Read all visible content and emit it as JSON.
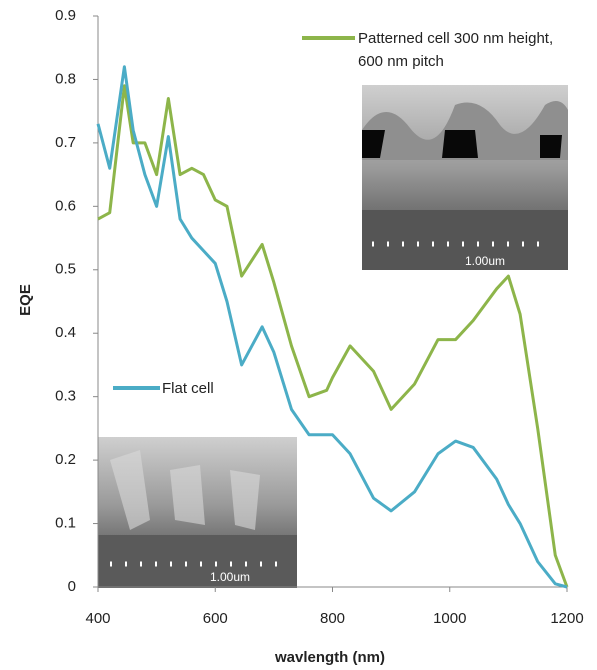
{
  "chart_data": {
    "type": "line",
    "xlabel": "wavlength (nm)",
    "ylabel": "EQE",
    "x": [
      400,
      420,
      445,
      460,
      480,
      500,
      520,
      540,
      560,
      580,
      600,
      620,
      645,
      680,
      700,
      730,
      760,
      790,
      800,
      830,
      870,
      900,
      940,
      980,
      1010,
      1040,
      1080,
      1100,
      1120,
      1150,
      1180,
      1200
    ],
    "series": [
      {
        "name": "Patterned cell 300 nm height, 600 nm pitch",
        "color": "#8db54a",
        "values": [
          0.58,
          0.59,
          0.79,
          0.7,
          0.7,
          0.65,
          0.77,
          0.65,
          0.66,
          0.65,
          0.61,
          0.6,
          0.49,
          0.54,
          0.48,
          0.38,
          0.3,
          0.31,
          0.33,
          0.38,
          0.34,
          0.28,
          0.32,
          0.39,
          0.39,
          0.42,
          0.47,
          0.49,
          0.43,
          0.25,
          0.05,
          0.0
        ]
      },
      {
        "name": "Flat cell",
        "color": "#4bacc6",
        "values": [
          0.73,
          0.66,
          0.82,
          0.72,
          0.65,
          0.6,
          0.71,
          0.58,
          0.55,
          0.53,
          0.51,
          0.45,
          0.35,
          0.41,
          0.37,
          0.28,
          0.24,
          0.24,
          0.24,
          0.21,
          0.14,
          0.12,
          0.15,
          0.21,
          0.23,
          0.22,
          0.17,
          0.13,
          0.1,
          0.04,
          0.005,
          0.0
        ]
      }
    ],
    "xlim": [
      400,
      1200
    ],
    "xticks": [
      400,
      600,
      800,
      1000,
      1200
    ],
    "ylim": [
      0,
      0.9
    ],
    "yticks": [
      0,
      0.1,
      0.2,
      0.3,
      0.4,
      0.5,
      0.6,
      0.7,
      0.8,
      0.9
    ],
    "annotations": [
      "1.00um",
      "1.00um"
    ]
  }
}
